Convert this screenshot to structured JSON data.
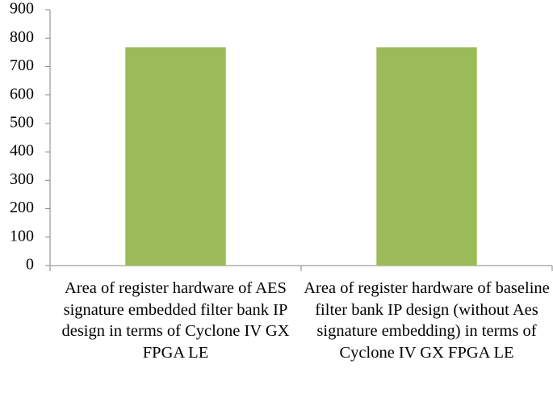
{
  "chart_data": {
    "type": "bar",
    "categories": [
      "Area of register hardware of AES signature embedded filter bank IP design in terms of Cyclone IV GX FPGA LE",
      "Area of register hardware of baseline filter bank IP design (without Aes signature embedding) in terms of Cyclone IV GX FPGA LE"
    ],
    "values": [
      768,
      768
    ],
    "color": "#9bbb59",
    "ylim": [
      0,
      900
    ],
    "yticks": [
      0,
      100,
      200,
      300,
      400,
      500,
      600,
      700,
      800,
      900
    ],
    "grid": false
  }
}
